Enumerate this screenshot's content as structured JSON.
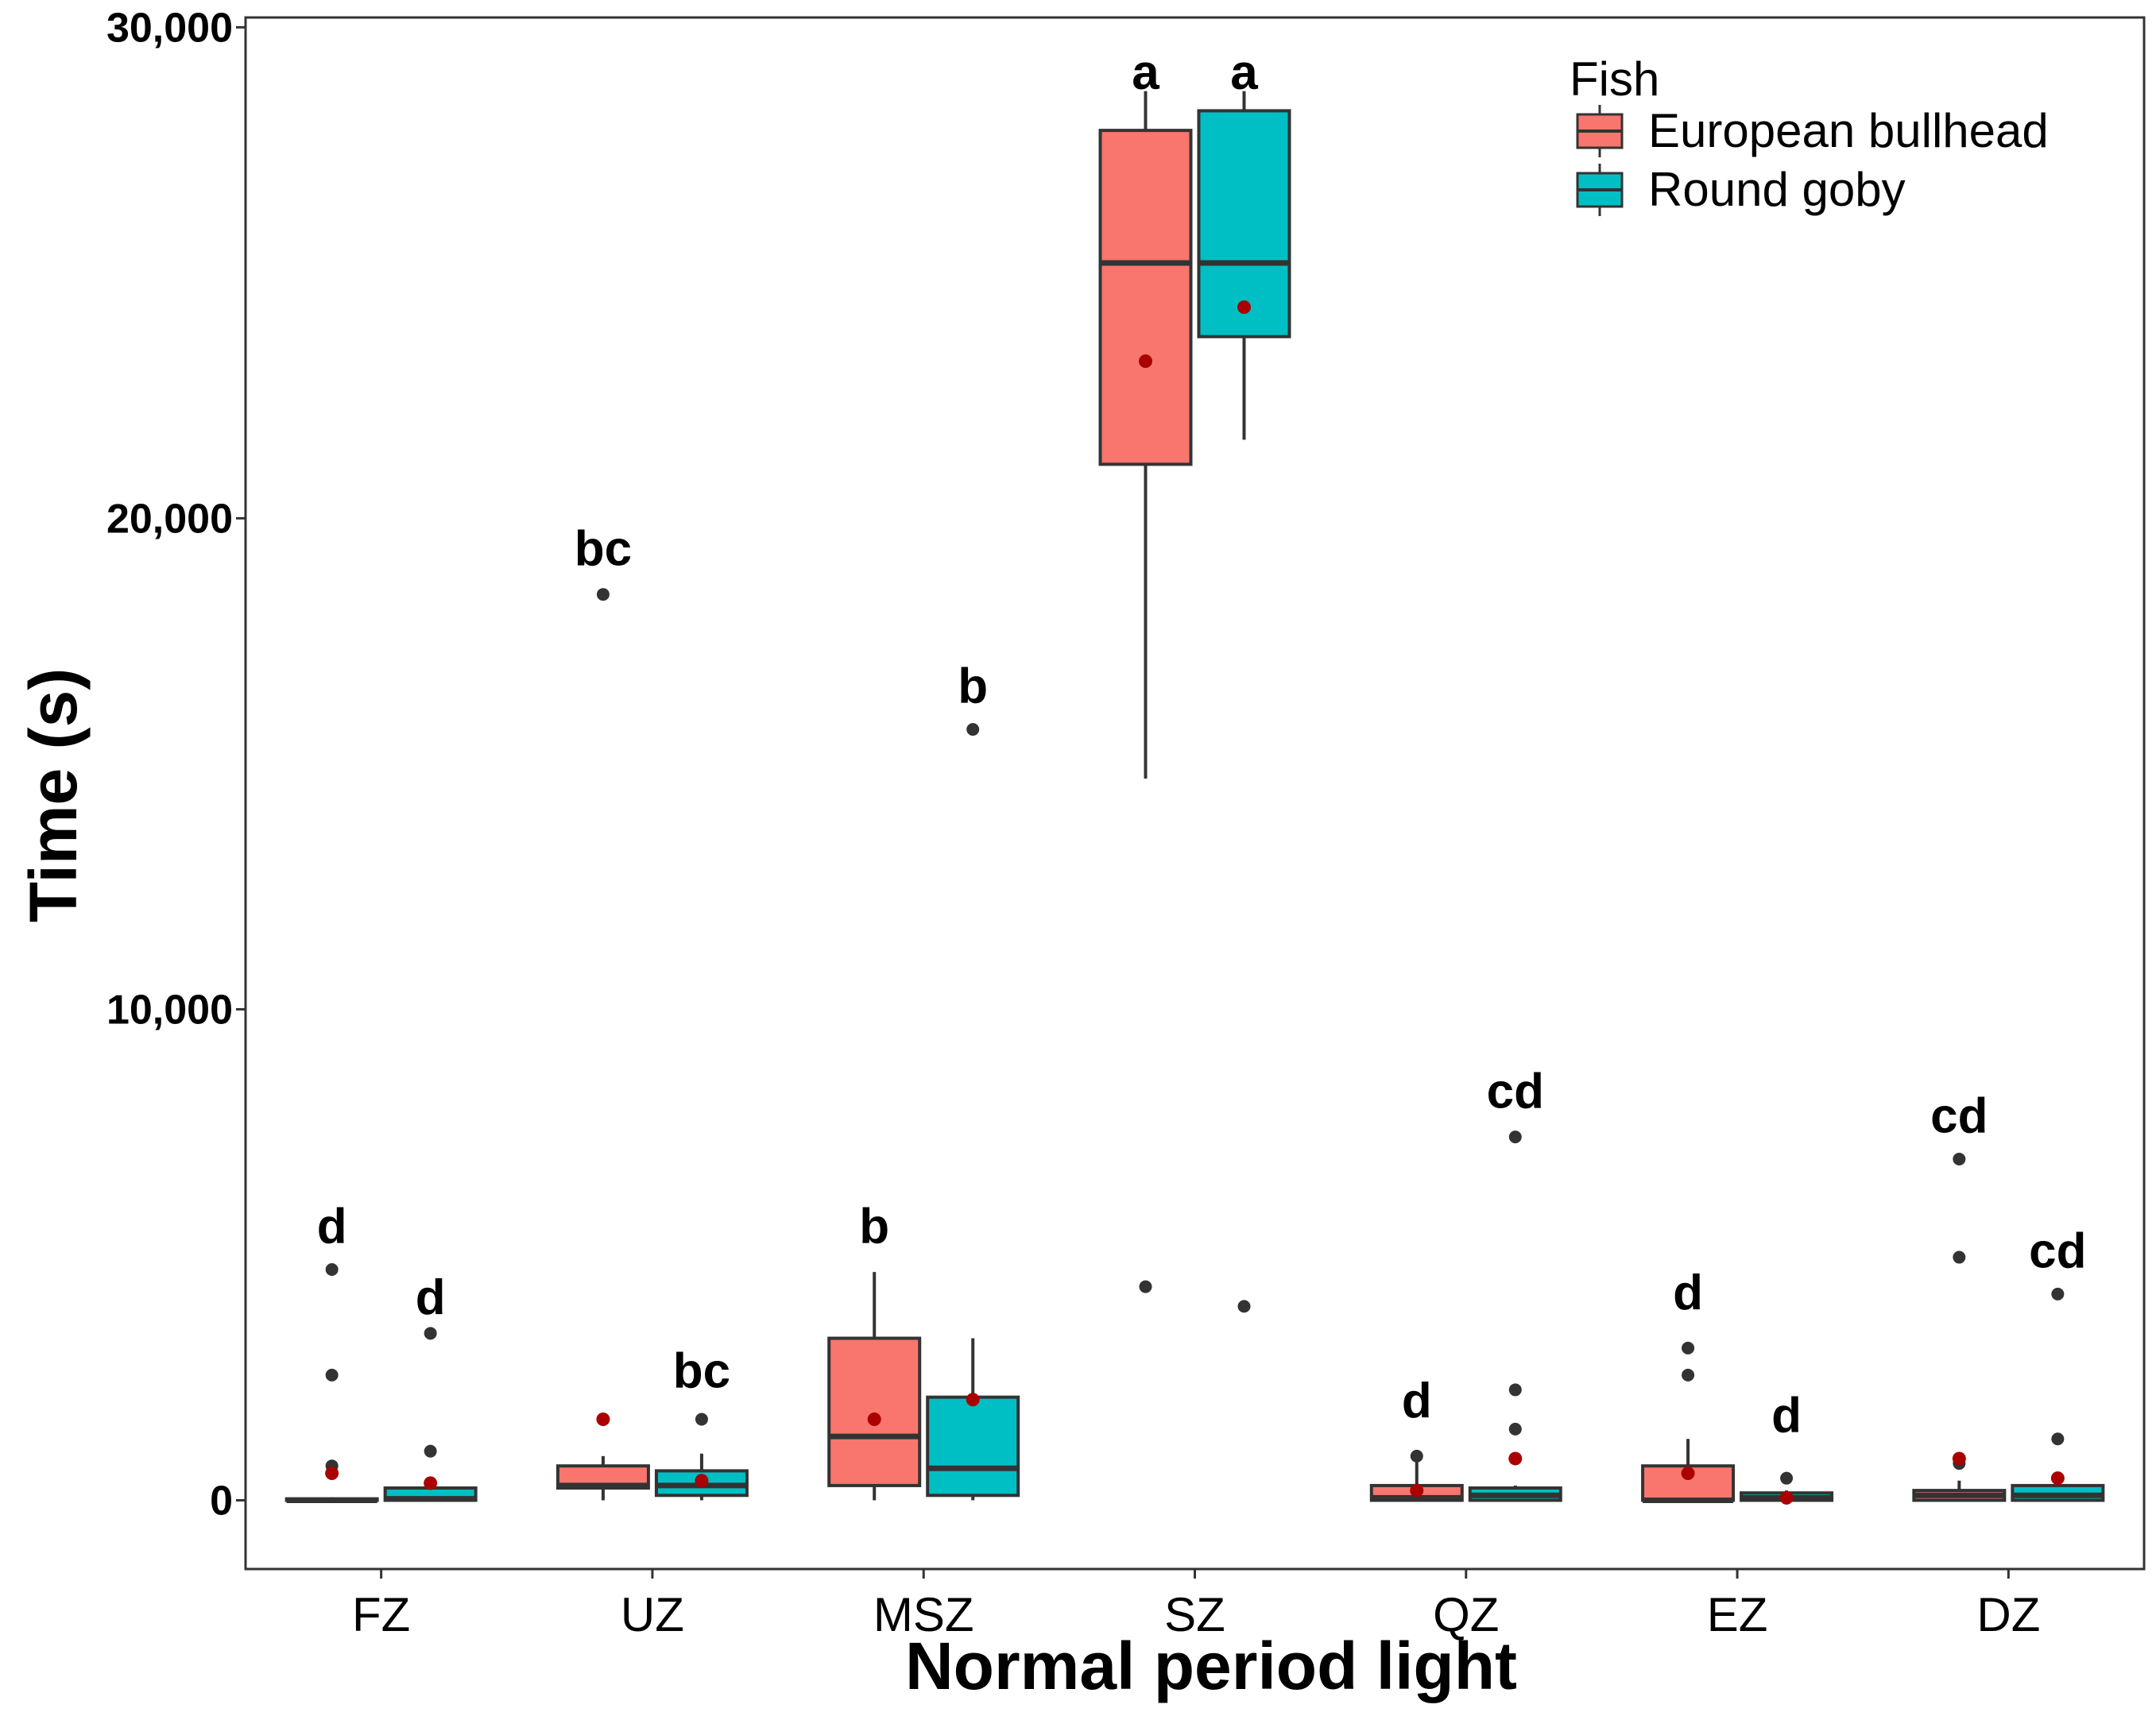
{
  "chart_data": {
    "type": "box",
    "title": "",
    "xlabel": "Normal period light",
    "ylabel": "Time (s)",
    "ylim": [
      -1400,
      30200
    ],
    "yticks": [
      0,
      10000,
      20000,
      30000
    ],
    "ytick_labels": [
      "0",
      "10,000",
      "20,000",
      "30,000"
    ],
    "grid": false,
    "categories": [
      "FZ",
      "UZ",
      "MSZ",
      "SZ",
      "QZ",
      "EZ",
      "DZ"
    ],
    "legend": {
      "title": "Fish",
      "position": "top-right",
      "entries": [
        {
          "name": "European bullhead",
          "color": "#F8766D"
        },
        {
          "name": "Round goby",
          "color": "#00BFC4"
        }
      ]
    },
    "series": [
      {
        "name": "European bullhead",
        "color": "#F8766D",
        "boxes": [
          {
            "category": "FZ",
            "whisker_low": 0,
            "q1": 0,
            "median": 0,
            "q3": 30,
            "whisker_high": 60,
            "mean": 550,
            "outliers": [
              4700,
              2550,
              700
            ],
            "label": "d"
          },
          {
            "category": "UZ",
            "whisker_low": 0,
            "q1": 250,
            "median": 300,
            "q3": 700,
            "whisker_high": 900,
            "mean": 1650,
            "outliers": [
              18450
            ],
            "label": "bc"
          },
          {
            "category": "MSZ",
            "whisker_low": 0,
            "q1": 300,
            "median": 1300,
            "q3": 3300,
            "whisker_high": 4650,
            "mean": 1650,
            "outliers": [],
            "label": "b"
          },
          {
            "category": "SZ",
            "whisker_low": 14700,
            "q1": 21100,
            "median": 25200,
            "q3": 27900,
            "whisker_high": 28700,
            "mean": 23200,
            "outliers": [
              4350
            ],
            "label": "a"
          },
          {
            "category": "QZ",
            "whisker_low": 0,
            "q1": 0,
            "median": 50,
            "q3": 300,
            "whisker_high": 900,
            "mean": 200,
            "outliers": [
              900
            ],
            "label": "d"
          },
          {
            "category": "EZ",
            "whisker_low": 0,
            "q1": 0,
            "median": 0,
            "q3": 700,
            "whisker_high": 1250,
            "mean": 550,
            "outliers": [
              3100,
              2550
            ],
            "label": "d"
          },
          {
            "category": "DZ",
            "whisker_low": 0,
            "q1": 0,
            "median": 100,
            "q3": 200,
            "whisker_high": 400,
            "mean": 850,
            "outliers": [
              6950,
              4950,
              750
            ],
            "label": "cd"
          }
        ]
      },
      {
        "name": "Round goby",
        "color": "#00BFC4",
        "boxes": [
          {
            "category": "FZ",
            "whisker_low": 0,
            "q1": 0,
            "median": 30,
            "q3": 250,
            "whisker_high": 300,
            "mean": 350,
            "outliers": [
              3400,
              1000
            ],
            "label": "d"
          },
          {
            "category": "UZ",
            "whisker_low": 0,
            "q1": 100,
            "median": 300,
            "q3": 600,
            "whisker_high": 950,
            "mean": 400,
            "outliers": [
              1650
            ],
            "label": "bc"
          },
          {
            "category": "MSZ",
            "whisker_low": 0,
            "q1": 100,
            "median": 650,
            "q3": 2100,
            "whisker_high": 3300,
            "mean": 2050,
            "outliers": [
              15700
            ],
            "label": "b"
          },
          {
            "category": "SZ",
            "whisker_low": 21600,
            "q1": 23700,
            "median": 25200,
            "q3": 28300,
            "whisker_high": 28700,
            "mean": 24300,
            "outliers": [
              3950
            ],
            "label": "a"
          },
          {
            "category": "QZ",
            "whisker_low": 0,
            "q1": 0,
            "median": 100,
            "q3": 250,
            "whisker_high": 300,
            "mean": 850,
            "outliers": [
              7400,
              2250,
              1450
            ],
            "label": "cd"
          },
          {
            "category": "EZ",
            "whisker_low": 0,
            "q1": 0,
            "median": 50,
            "q3": 150,
            "whisker_high": 200,
            "mean": 50,
            "outliers": [
              450
            ],
            "label": "d"
          },
          {
            "category": "DZ",
            "whisker_low": 0,
            "q1": 0,
            "median": 100,
            "q3": 300,
            "whisker_high": 350,
            "mean": 450,
            "outliers": [
              4200,
              1250
            ],
            "label": "cd"
          }
        ]
      }
    ],
    "annotation_letters": [
      {
        "category": "FZ",
        "series": "European bullhead",
        "text": "d",
        "y": 5600
      },
      {
        "category": "FZ",
        "series": "Round goby",
        "text": "d",
        "y": 4150
      },
      {
        "category": "UZ",
        "series": "European bullhead",
        "text": "bc",
        "y": 19400
      },
      {
        "category": "UZ",
        "series": "Round goby",
        "text": "bc",
        "y": 2650
      },
      {
        "category": "MSZ",
        "series": "European bullhead",
        "text": "b",
        "y": 5600
      },
      {
        "category": "MSZ",
        "series": "Round goby",
        "text": "b",
        "y": 16600
      },
      {
        "category": "SZ",
        "series": "European bullhead",
        "text": "a",
        "y": 29100
      },
      {
        "category": "SZ",
        "series": "Round goby",
        "text": "a",
        "y": 29100
      },
      {
        "category": "QZ",
        "series": "European bullhead",
        "text": "d",
        "y": 2050
      },
      {
        "category": "QZ",
        "series": "Round goby",
        "text": "cd",
        "y": 8350
      },
      {
        "category": "EZ",
        "series": "European bullhead",
        "text": "d",
        "y": 4250
      },
      {
        "category": "EZ",
        "series": "Round goby",
        "text": "d",
        "y": 1750
      },
      {
        "category": "DZ",
        "series": "European bullhead",
        "text": "cd",
        "y": 7850
      },
      {
        "category": "DZ",
        "series": "Round goby",
        "text": "cd",
        "y": 5100
      }
    ],
    "mean_marker_color": "#AA0000",
    "outlier_color": "#333333"
  }
}
